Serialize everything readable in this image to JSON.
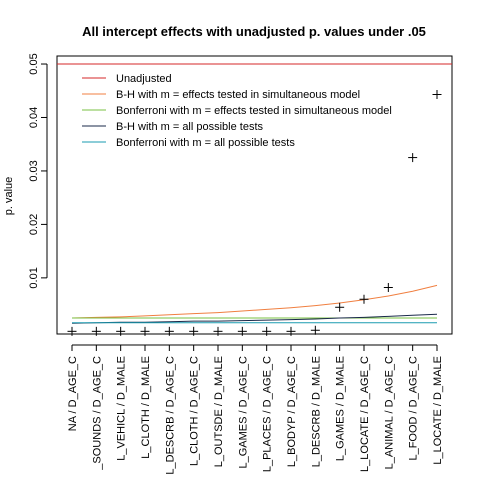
{
  "chart_data": {
    "type": "scatter",
    "title": "All intercept effects with unadjusted p. values under .05",
    "xlabel": "",
    "ylabel": "p. value",
    "ylim": [
      -0.0005,
      0.0515
    ],
    "y_ticks": [
      0.01,
      0.02,
      0.03,
      0.04,
      0.05
    ],
    "y_tick_labels": [
      "0.01",
      "0.02",
      "0.03",
      "0.04",
      "0.05"
    ],
    "grid": false,
    "legend_position": "top-left",
    "categories": [
      "NA / D_AGE_C",
      "_SOUNDS / D_AGE_C",
      "L_VEHICL / D_MALE",
      "L_CLOTH / D_MALE",
      "L_DESCRB / D_AGE_C",
      "L_CLOTH / D_AGE_C",
      "L_OUTSDE / D_MALE",
      "L_GAMES / D_AGE_C",
      "L_PLACES / D_AGE_C",
      "L_BODYP / D_AGE_C",
      "L_DESCRB / D_MALE",
      "L_GAMES / D_MALE",
      "L_LOCATE / D_AGE_C",
      "L_ANIMAL / D_AGE_C",
      "L_FOOD / D_AGE_C",
      "L_LOCATE / D_MALE"
    ],
    "points": {
      "marker": "+",
      "values": [
        0.0,
        0.0,
        0.0,
        0.0,
        0.0,
        0.0,
        0.0,
        0.0,
        0.0,
        0.0,
        0.0002,
        0.0045,
        0.006,
        0.0082,
        0.0325,
        0.0443
      ]
    },
    "series": [
      {
        "name": "Unadjusted",
        "color": "#d62728",
        "values": [
          0.05,
          0.05,
          0.05,
          0.05,
          0.05,
          0.05,
          0.05,
          0.05,
          0.05,
          0.05,
          0.05,
          0.05,
          0.05,
          0.05,
          0.05,
          0.05
        ]
      },
      {
        "name": "B-H with m = effects tested in simultaneous model",
        "color": "#f07f40",
        "values": [
          0.0025,
          0.0026,
          0.0027,
          0.0029,
          0.0031,
          0.0033,
          0.0035,
          0.0038,
          0.0041,
          0.0044,
          0.0048,
          0.0053,
          0.0059,
          0.0066,
          0.0075,
          0.0086
        ]
      },
      {
        "name": "Bonferroni with m = effects tested in simultaneous model",
        "color": "#7ac143",
        "values": [
          0.0025,
          0.0025,
          0.0025,
          0.0025,
          0.0025,
          0.0025,
          0.0025,
          0.0025,
          0.0025,
          0.0025,
          0.0025,
          0.0025,
          0.0025,
          0.0025,
          0.0025,
          0.0025
        ]
      },
      {
        "name": "B-H with m = all possible tests",
        "color": "#1a2a4a",
        "values": [
          0.0015,
          0.0016,
          0.0017,
          0.0017,
          0.0018,
          0.0019,
          0.0019,
          0.002,
          0.0021,
          0.0022,
          0.0023,
          0.0025,
          0.0026,
          0.0028,
          0.003,
          0.0032
        ]
      },
      {
        "name": "Bonferroni with m = all possible tests",
        "color": "#1a9bb0",
        "values": [
          0.0016,
          0.0016,
          0.0016,
          0.0016,
          0.0016,
          0.0016,
          0.0016,
          0.0016,
          0.0016,
          0.0016,
          0.0016,
          0.0016,
          0.0016,
          0.0016,
          0.0016,
          0.0016
        ]
      }
    ]
  }
}
